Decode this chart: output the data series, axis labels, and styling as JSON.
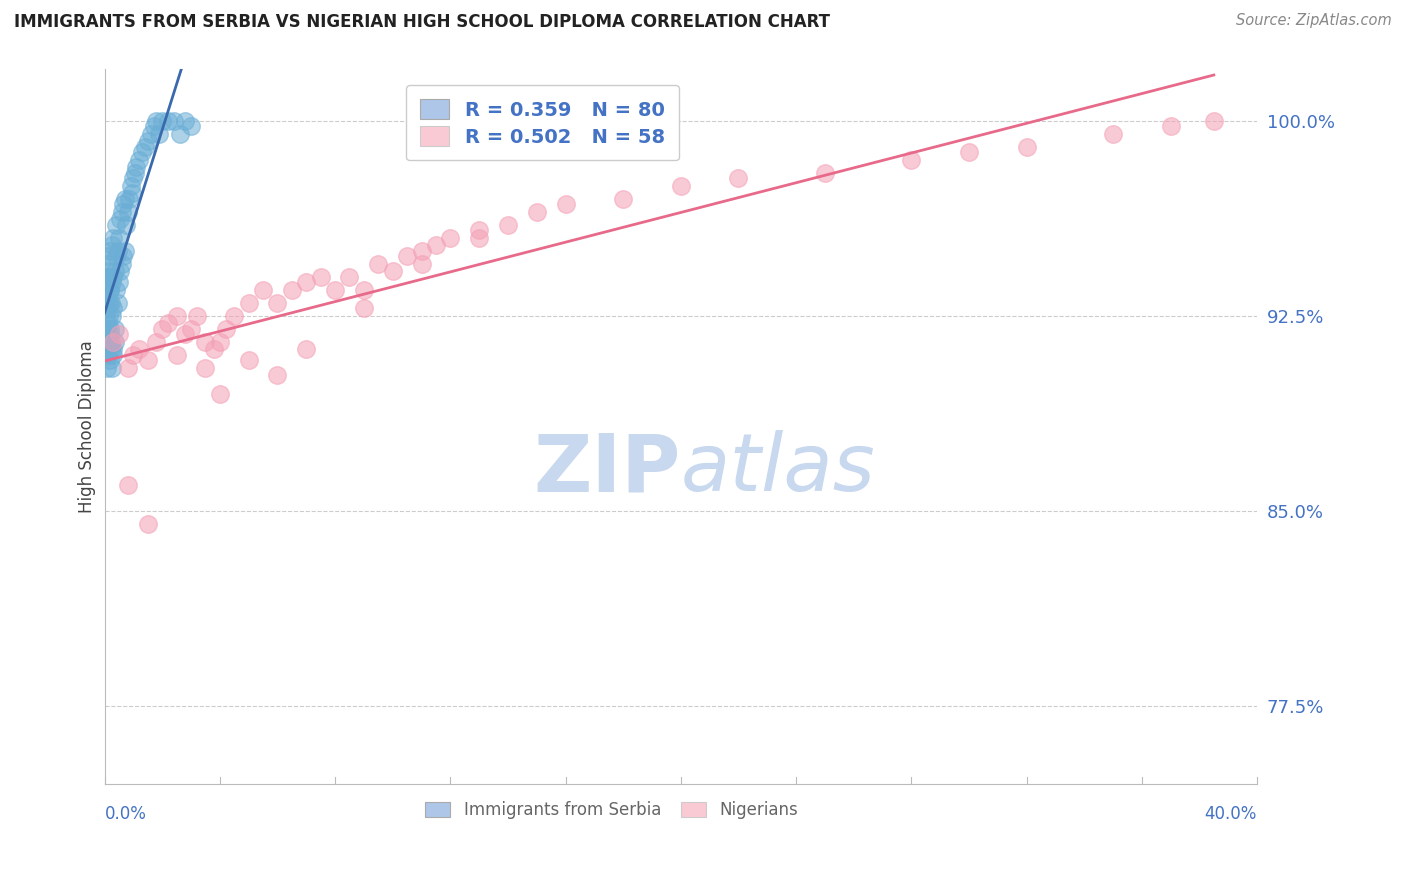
{
  "title": "IMMIGRANTS FROM SERBIA VS NIGERIAN HIGH SCHOOL DIPLOMA CORRELATION CHART",
  "source": "Source: ZipAtlas.com",
  "xlabel_bottom_left": "0.0%",
  "xlabel_bottom_right": "40.0%",
  "ylabel": "High School Diploma",
  "y_ticks": [
    77.5,
    85.0,
    92.5,
    100.0
  ],
  "y_tick_labels": [
    "77.5%",
    "85.0%",
    "92.5%",
    "100.0%"
  ],
  "x_min": 0.0,
  "x_max": 40.0,
  "y_min": 74.5,
  "y_max": 102.0,
  "serbia_R": 0.359,
  "serbia_N": 80,
  "nigeria_R": 0.502,
  "nigeria_N": 58,
  "blue_color": "#6baed6",
  "blue_line_color": "#3a6aad",
  "pink_color": "#f4a0b5",
  "pink_line_color": "#e86a8a",
  "legend_blue_fill": "#aec6e8",
  "legend_pink_fill": "#f9c9d4",
  "title_color": "#222222",
  "source_color": "#888888",
  "tick_label_color": "#4472c4",
  "grid_color": "#cccccc",
  "watermark_color": "#dce8f5",
  "legend_text_color": "#4472c4",
  "serbia_x": [
    0.05,
    0.05,
    0.05,
    0.05,
    0.05,
    0.08,
    0.08,
    0.08,
    0.08,
    0.1,
    0.1,
    0.1,
    0.1,
    0.12,
    0.12,
    0.12,
    0.15,
    0.15,
    0.15,
    0.18,
    0.18,
    0.2,
    0.2,
    0.2,
    0.22,
    0.22,
    0.25,
    0.25,
    0.25,
    0.28,
    0.3,
    0.3,
    0.3,
    0.35,
    0.35,
    0.4,
    0.4,
    0.4,
    0.45,
    0.45,
    0.5,
    0.5,
    0.55,
    0.55,
    0.6,
    0.6,
    0.65,
    0.65,
    0.7,
    0.7,
    0.75,
    0.8,
    0.85,
    0.9,
    0.95,
    1.0,
    1.05,
    1.1,
    1.2,
    1.3,
    1.4,
    1.5,
    1.6,
    1.7,
    1.8,
    1.9,
    2.0,
    2.2,
    2.4,
    2.6,
    2.8,
    3.0,
    0.1,
    0.12,
    0.15,
    0.18,
    0.22,
    0.25,
    0.3,
    0.35
  ],
  "serbia_y": [
    92.5,
    93.0,
    93.5,
    94.0,
    91.8,
    92.8,
    93.2,
    94.2,
    91.5,
    92.0,
    93.8,
    94.5,
    91.2,
    92.2,
    93.5,
    94.8,
    92.5,
    93.0,
    94.0,
    91.8,
    93.5,
    92.0,
    93.5,
    95.0,
    91.5,
    93.0,
    92.5,
    93.8,
    95.2,
    91.2,
    92.8,
    94.0,
    95.5,
    92.0,
    94.2,
    93.5,
    94.8,
    96.0,
    93.0,
    95.0,
    93.8,
    95.5,
    94.2,
    96.2,
    94.5,
    96.5,
    94.8,
    96.8,
    95.0,
    97.0,
    96.0,
    96.5,
    97.0,
    97.5,
    97.2,
    97.8,
    98.0,
    98.2,
    98.5,
    98.8,
    99.0,
    99.2,
    99.5,
    99.8,
    100.0,
    99.5,
    100.0,
    100.0,
    100.0,
    99.5,
    100.0,
    99.8,
    90.5,
    91.0,
    91.5,
    90.8,
    91.2,
    90.5,
    91.0,
    91.5
  ],
  "nigeria_x": [
    0.3,
    0.5,
    0.8,
    1.0,
    1.2,
    1.5,
    1.8,
    2.0,
    2.2,
    2.5,
    2.8,
    3.0,
    3.2,
    3.5,
    3.8,
    4.0,
    4.2,
    4.5,
    5.0,
    5.5,
    6.0,
    6.5,
    7.0,
    7.5,
    8.0,
    8.5,
    9.0,
    9.5,
    10.0,
    10.5,
    11.0,
    11.5,
    12.0,
    13.0,
    14.0,
    15.0,
    16.0,
    18.0,
    20.0,
    22.0,
    25.0,
    28.0,
    30.0,
    32.0,
    35.0,
    37.0,
    38.5,
    2.5,
    3.5,
    5.0,
    7.0,
    9.0,
    11.0,
    13.0,
    4.0,
    6.0,
    0.8,
    1.5
  ],
  "nigeria_y": [
    91.5,
    91.8,
    90.5,
    91.0,
    91.2,
    90.8,
    91.5,
    92.0,
    92.2,
    92.5,
    91.8,
    92.0,
    92.5,
    91.5,
    91.2,
    91.5,
    92.0,
    92.5,
    93.0,
    93.5,
    93.0,
    93.5,
    93.8,
    94.0,
    93.5,
    94.0,
    93.5,
    94.5,
    94.2,
    94.8,
    95.0,
    95.2,
    95.5,
    95.8,
    96.0,
    96.5,
    96.8,
    97.0,
    97.5,
    97.8,
    98.0,
    98.5,
    98.8,
    99.0,
    99.5,
    99.8,
    100.0,
    91.0,
    90.5,
    90.8,
    91.2,
    92.8,
    94.5,
    95.5,
    89.5,
    90.2,
    86.0,
    84.5
  ]
}
